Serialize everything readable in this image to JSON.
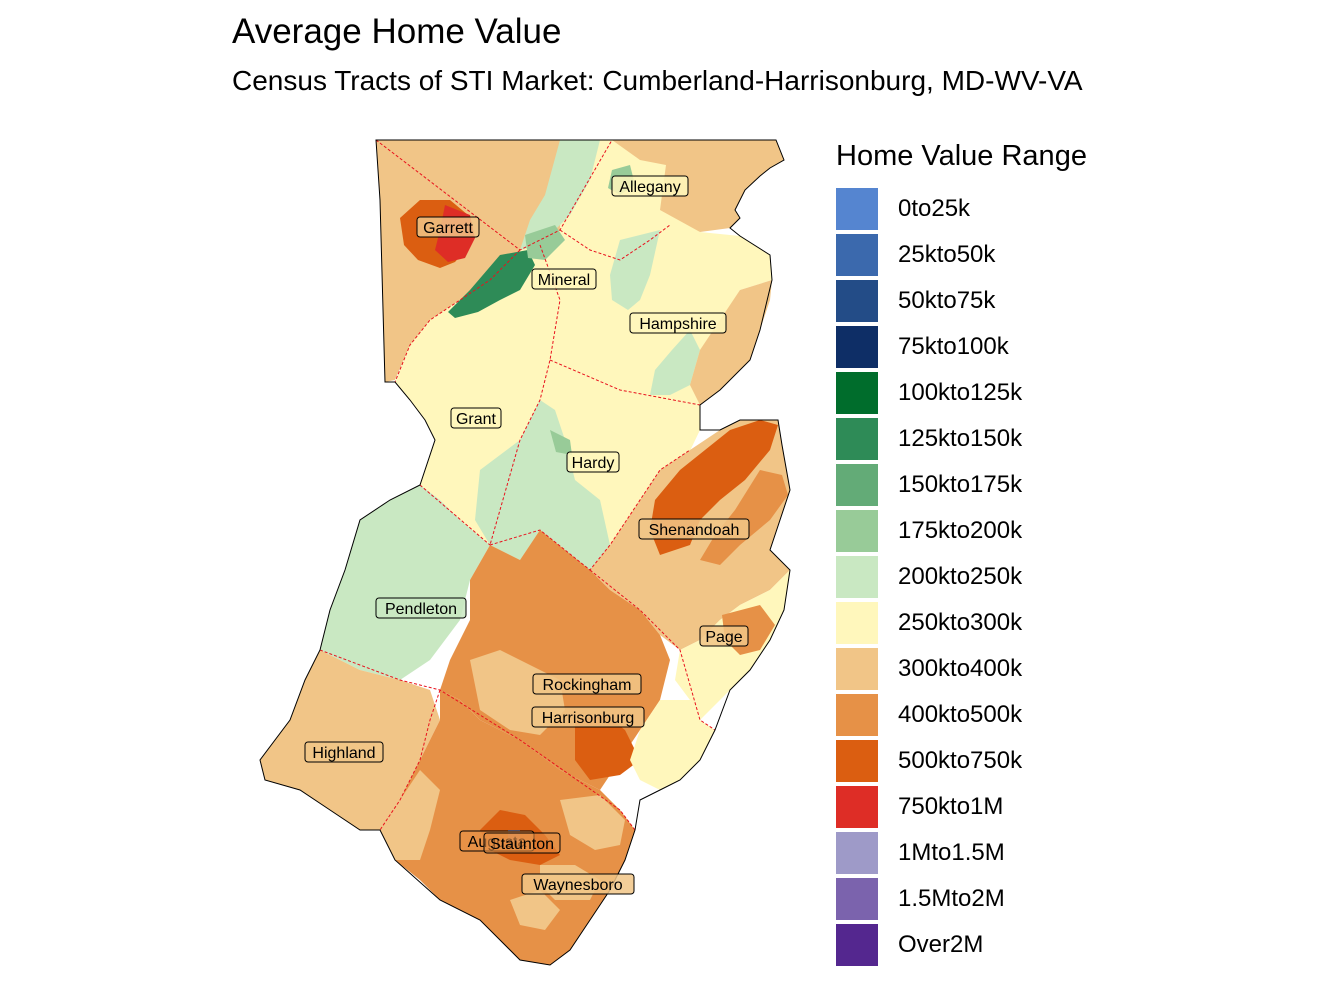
{
  "header": {
    "title": "Average Home Value",
    "subtitle": "Census Tracts of STI Market: Cumberland-Harrisonburg, MD-WV-VA"
  },
  "legend": {
    "title": "Home Value Range",
    "items": [
      {
        "label": "0to25k",
        "color": "#5585d0"
      },
      {
        "label": "25kto50k",
        "color": "#3b69ad"
      },
      {
        "label": "50kto75k",
        "color": "#234c87"
      },
      {
        "label": "75kto100k",
        "color": "#0e2e66"
      },
      {
        "label": "100kto125k",
        "color": "#006d2c"
      },
      {
        "label": "125kto150k",
        "color": "#2e8b57"
      },
      {
        "label": "150kto175k",
        "color": "#63ab77"
      },
      {
        "label": "175kto200k",
        "color": "#98cb98"
      },
      {
        "label": "200kto250k",
        "color": "#c9e8c2"
      },
      {
        "label": "250kto300k",
        "color": "#fff7bc"
      },
      {
        "label": "300kto400k",
        "color": "#f1c587"
      },
      {
        "label": "400kto500k",
        "color": "#e69147"
      },
      {
        "label": "500kto750k",
        "color": "#db5e11"
      },
      {
        "label": "750kto1M",
        "color": "#de2d26"
      },
      {
        "label": "1Mto1.5M",
        "color": "#9e9ac8"
      },
      {
        "label": "1.5Mto2M",
        "color": "#7b63ad"
      },
      {
        "label": "Over2M",
        "color": "#54278f"
      }
    ]
  },
  "counties": [
    {
      "name": "Allegany"
    },
    {
      "name": "Garrett"
    },
    {
      "name": "Mineral"
    },
    {
      "name": "Hampshire"
    },
    {
      "name": "Grant"
    },
    {
      "name": "Hardy"
    },
    {
      "name": "Shenandoah"
    },
    {
      "name": "Pendleton"
    },
    {
      "name": "Page"
    },
    {
      "name": "Rockingham"
    },
    {
      "name": "Harrisonburg"
    },
    {
      "name": "Highland"
    },
    {
      "name": "Augusta"
    },
    {
      "name": "Staunton"
    },
    {
      "name": "Waynesboro"
    }
  ]
}
